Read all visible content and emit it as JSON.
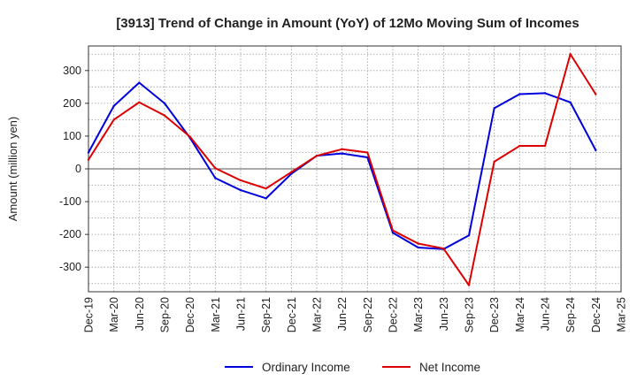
{
  "chart_data": {
    "type": "line",
    "title": "[3913]  Trend of Change in Amount (YoY) of 12Mo Moving Sum of Incomes",
    "ylabel": "Amount (million yen)",
    "xlabel": "",
    "ylim": [
      -375,
      375
    ],
    "yticks": [
      300,
      200,
      100,
      0,
      -100,
      -200,
      -300
    ],
    "grid": true,
    "legend_position": "bottom",
    "categories": [
      "Dec-19",
      "Mar-20",
      "Jun-20",
      "Sep-20",
      "Dec-20",
      "Mar-21",
      "Jun-21",
      "Sep-21",
      "Dec-21",
      "Mar-22",
      "Jun-22",
      "Sep-22",
      "Dec-22",
      "Mar-23",
      "Jun-23",
      "Sep-23",
      "Dec-23",
      "Mar-24",
      "Jun-24",
      "Sep-24",
      "Dec-24",
      "Mar-25"
    ],
    "series": [
      {
        "name": "Ordinary Income",
        "color": "#0000dd",
        "values": [
          50,
          192,
          263,
          200,
          95,
          -28,
          -65,
          -90,
          -15,
          40,
          47,
          35,
          -195,
          -240,
          -245,
          -203,
          185,
          228,
          231,
          203,
          57,
          null
        ]
      },
      {
        "name": "Net Income",
        "color": "#dd0000",
        "values": [
          28,
          150,
          203,
          163,
          98,
          2,
          -35,
          -60,
          -10,
          40,
          60,
          50,
          -188,
          -228,
          -243,
          -355,
          22,
          70,
          70,
          350,
          228,
          null
        ]
      }
    ]
  }
}
